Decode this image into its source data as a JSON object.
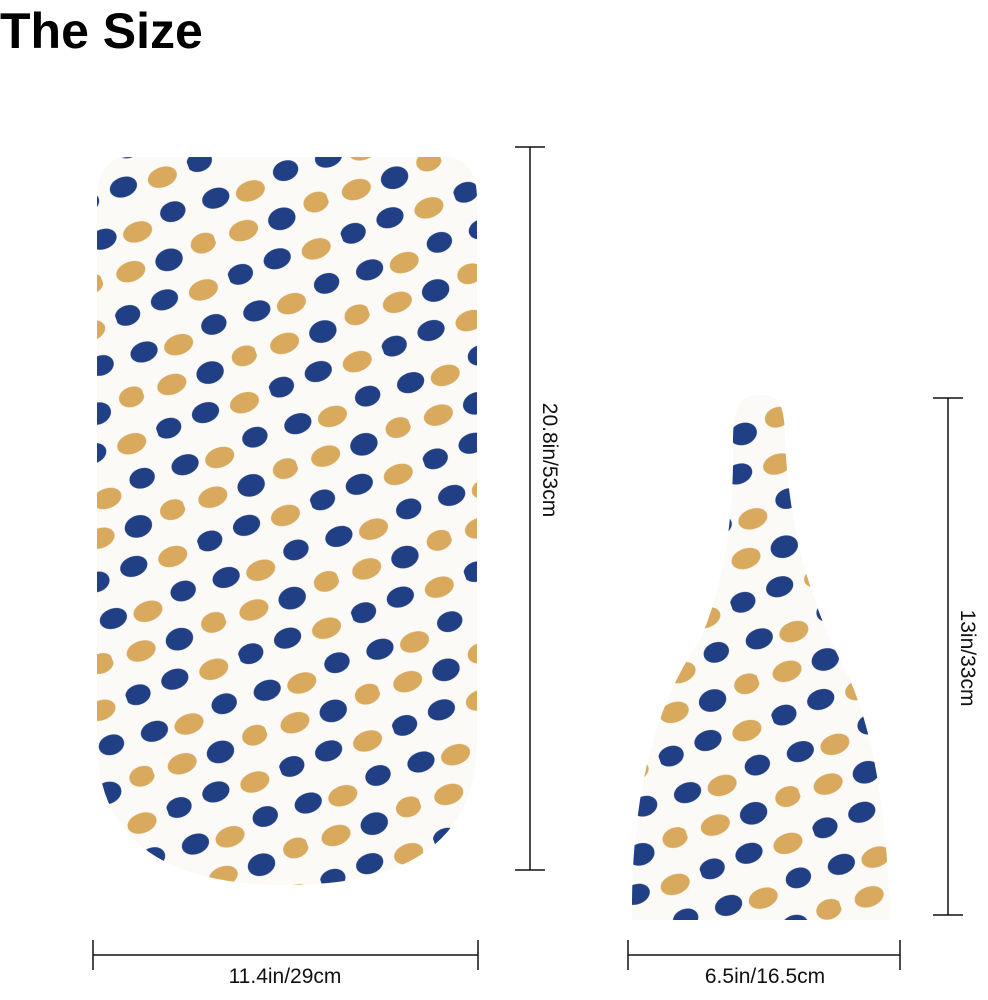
{
  "title": "The Size",
  "items": [
    {
      "width_label": "11.4in/29cm",
      "height_label": "20.8in/53cm"
    },
    {
      "width_label": "6.5in/16.5cm",
      "height_label": "13in/33cm"
    }
  ]
}
